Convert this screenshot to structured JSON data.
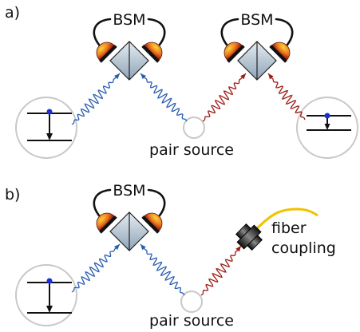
{
  "panel_a": {
    "label": "a)",
    "bsm_left": "BSM",
    "bsm_right": "BSM",
    "source": "pair source"
  },
  "panel_b": {
    "label": "b)",
    "bsm": "BSM",
    "fiber": [
      "fiber",
      "coupling"
    ],
    "source": "pair source"
  }
}
